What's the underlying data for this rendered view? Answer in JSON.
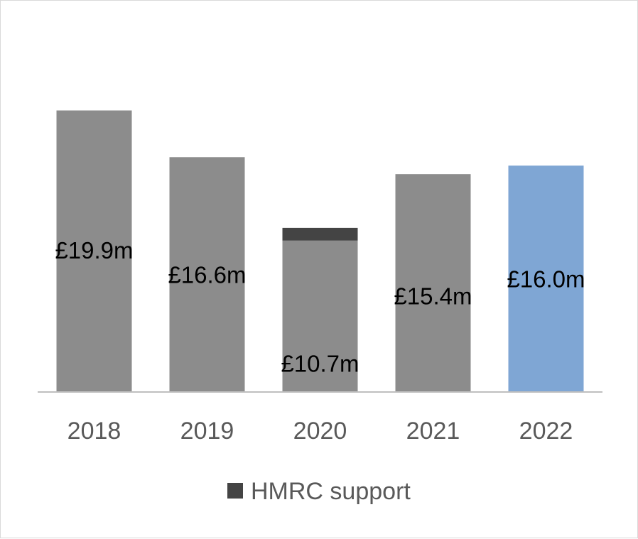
{
  "chart_data": {
    "type": "bar",
    "categories": [
      "2018",
      "2019",
      "2020",
      "2021",
      "2022"
    ],
    "series": [
      {
        "values": [
          19.9,
          16.6,
          10.7,
          15.4,
          16.0
        ]
      },
      {
        "name": "HMRC support",
        "values": [
          0,
          0,
          0.9,
          0,
          0
        ]
      }
    ],
    "data_labels": [
      "£19.9m",
      "£16.6m",
      "£10.7m",
      "£15.4m",
      "£16.0m"
    ],
    "ylim": [
      0,
      26
    ],
    "grid": false,
    "legend_position": "bottom",
    "colors": {
      "bar": "#8c8c8c",
      "highlight": "#7fa6d4",
      "hmrc": "#444444",
      "axis": "#bfbfbf"
    },
    "highlight_index": 4
  },
  "legend": {
    "label": "HMRC support"
  }
}
